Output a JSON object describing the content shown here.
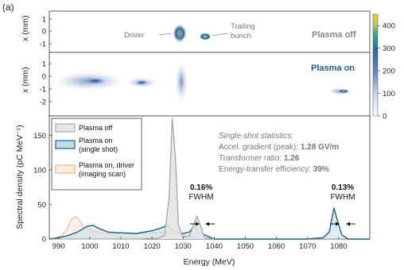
{
  "panel_label": "(a)",
  "colors": {
    "plasma_off": "#9a9a9a",
    "plasma_on": "#1f5f8b",
    "driver_scan": "#e6b98a",
    "label_plasma_on": "#1f5f8b",
    "label_plasma_off": "#888888"
  },
  "top_panel": {
    "ylabel": "x (mm)",
    "yticks": [
      "1",
      "0",
      "-1"
    ],
    "status_label": "Plasma off",
    "annotations": {
      "driver": "Driver",
      "trailing": "Trailing\nbunch"
    }
  },
  "middle_panel": {
    "ylabel": "x (mm)",
    "yticks": [
      "1",
      "0",
      "-1",
      "-2"
    ],
    "status_label": "Plasma on"
  },
  "colorbar": {
    "ticks": [
      "400",
      "300",
      "200",
      "100",
      "0"
    ],
    "range": [
      0,
      450
    ]
  },
  "chart_data": {
    "type": "area",
    "xlabel": "Energy (MeV)",
    "ylabel": "Spectral density (pC MeV⁻¹)",
    "xlim": [
      987,
      1090
    ],
    "ylim": [
      0,
      178
    ],
    "x_ticks": [
      990,
      1000,
      1010,
      1020,
      1030,
      1040,
      1050,
      1060,
      1070,
      1080
    ],
    "y_ticks": [
      0,
      50,
      100,
      150
    ],
    "legend": [
      "Plasma off",
      "Plasma on\n(single shot)",
      "Plasma on, driver\n(imaging scan)"
    ],
    "legend_position": "top-left",
    "series": [
      {
        "name": "Plasma off",
        "x": [
          987,
          1000,
          1015,
          1022,
          1024,
          1025.5,
          1026.5,
          1027.5,
          1028.5,
          1030,
          1032,
          1033.5,
          1034.5,
          1035.5,
          1037,
          1040
        ],
        "y": [
          0,
          0,
          0,
          1,
          5,
          60,
          175,
          120,
          20,
          3,
          4,
          22,
          33,
          20,
          2,
          0
        ]
      },
      {
        "name": "Plasma on\n(single shot)",
        "x": [
          987,
          990,
          993,
          996,
          999,
          1001,
          1003,
          1006,
          1010,
          1015,
          1020,
          1023,
          1025,
          1027,
          1028,
          1030,
          1032,
          1033.5,
          1035,
          1040,
          1070,
          1075,
          1077,
          1078.5,
          1079.5,
          1081,
          1083,
          1090
        ],
        "y": [
          0,
          2,
          5,
          10,
          18,
          20,
          15,
          10,
          9,
          8,
          12,
          16,
          20,
          12,
          10,
          8,
          10,
          18,
          10,
          0,
          0,
          2,
          10,
          45,
          28,
          6,
          0,
          0
        ]
      },
      {
        "name": "Plasma on, driver\n(imaging scan)",
        "x": [
          987,
          990,
          992.5,
          994,
          995.5,
          996.5,
          998,
          1000,
          1003,
          1006,
          1010,
          1015,
          1020,
          1025,
          1028,
          1030,
          1033
        ],
        "y": [
          0,
          3,
          12,
          28,
          33,
          28,
          17,
          14,
          10,
          8,
          8,
          8,
          9,
          10,
          9,
          6,
          0
        ]
      }
    ],
    "annotations": [
      "0.16%\nFWHM",
      "0.13%\nFWHM"
    ],
    "stats": {
      "title": "Single-shot statistics:",
      "line1_label": "Accel. gradient (peak): ",
      "line1_value": "1.28 GV/m",
      "line2_label": "Transformer ratio: ",
      "line2_value": "1.26",
      "line3_label": "Energy-transfer efficiency: ",
      "line3_value": "39%"
    }
  }
}
